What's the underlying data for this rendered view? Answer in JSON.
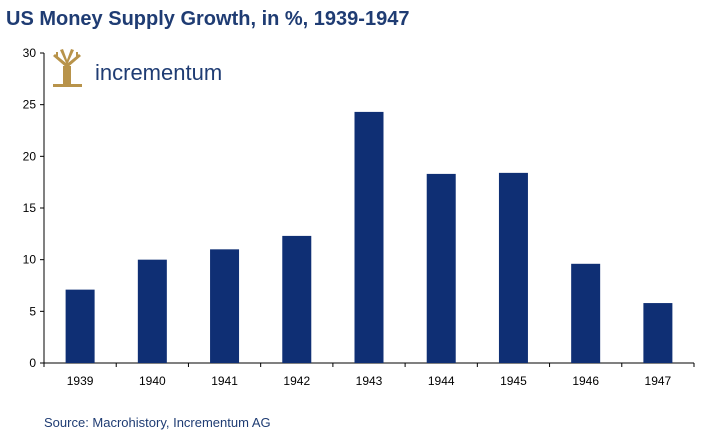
{
  "title": "US Money Supply Growth, in %, 1939-1947",
  "source": "Source: Macrohistory, Incrementum AG",
  "logo": {
    "name": "incrementum",
    "icon": "tree-logo-icon",
    "color": "#b8934a"
  },
  "colors": {
    "bar": "#0f2f74",
    "title": "#1f3c73",
    "axis": "#000000"
  },
  "chart_data": {
    "type": "bar",
    "categories": [
      "1939",
      "1940",
      "1941",
      "1942",
      "1943",
      "1944",
      "1945",
      "1946",
      "1947"
    ],
    "values": [
      7.1,
      10.0,
      11.0,
      12.3,
      24.3,
      18.3,
      18.4,
      9.6,
      5.8
    ],
    "title": "US Money Supply Growth, in %, 1939-1947",
    "xlabel": "",
    "ylabel": "",
    "ylim": [
      0,
      30
    ],
    "yticks": [
      0,
      5,
      10,
      15,
      20,
      25,
      30
    ],
    "grid": false,
    "legend": "none"
  }
}
